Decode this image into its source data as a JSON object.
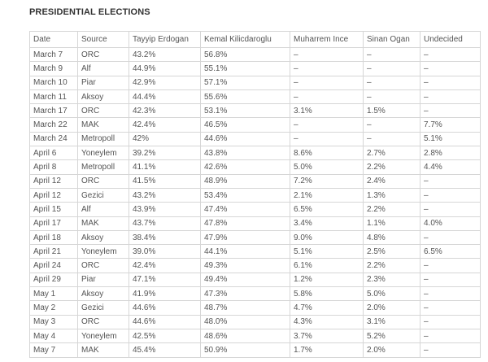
{
  "header": {
    "title": "PRESIDENTIAL ELECTIONS"
  },
  "table": {
    "columns": [
      "Date",
      "Source",
      "Tayyip Erdogan",
      "Kemal Kilicdaroglu",
      "Muharrem Ince",
      "Sinan Ogan",
      "Undecided"
    ],
    "rows": [
      [
        "March 7",
        "ORC",
        "43.2%",
        "56.8%",
        "–",
        "–",
        "–"
      ],
      [
        "March 9",
        "Alf",
        "44.9%",
        "55.1%",
        "–",
        "–",
        "–"
      ],
      [
        "March 10",
        "Piar",
        "42.9%",
        "57.1%",
        "–",
        "–",
        "–"
      ],
      [
        "March 11",
        "Aksoy",
        "44.4%",
        "55.6%",
        "–",
        "–",
        "–"
      ],
      [
        "March 17",
        "ORC",
        "42.3%",
        "53.1%",
        "3.1%",
        "1.5%",
        "–"
      ],
      [
        "March 22",
        "MAK",
        "42.4%",
        "46.5%",
        "–",
        "–",
        "7.7%"
      ],
      [
        "March 24",
        "Metropoll",
        "42%",
        "44.6%",
        "–",
        "–",
        "5.1%"
      ],
      [
        "April 6",
        "Yoneylem",
        "39.2%",
        "43.8%",
        "8.6%",
        "2.7%",
        "2.8%"
      ],
      [
        "April 8",
        "Metropoll",
        "41.1%",
        "42.6%",
        "5.0%",
        "2.2%",
        "4.4%"
      ],
      [
        "April 12",
        "ORC",
        "41.5%",
        "48.9%",
        "7.2%",
        "2.4%",
        "–"
      ],
      [
        "April 12",
        "Gezici",
        "43.2%",
        "53.4%",
        "2.1%",
        "1.3%",
        "–"
      ],
      [
        "April 15",
        "Alf",
        "43.9%",
        "47.4%",
        "6.5%",
        "2.2%",
        "–"
      ],
      [
        "April 17",
        "MAK",
        "43.7%",
        "47.8%",
        "3.4%",
        "1.1%",
        "4.0%"
      ],
      [
        "April 18",
        "Aksoy",
        "38.4%",
        "47.9%",
        "9.0%",
        "4.8%",
        "–"
      ],
      [
        "April 21",
        "Yoneylem",
        "39.0%",
        "44.1%",
        "5.1%",
        "2.5%",
        "6.5%"
      ],
      [
        "April 24",
        "ORC",
        "42.4%",
        "49.3%",
        "6.1%",
        "2.2%",
        "–"
      ],
      [
        "April 29",
        "Piar",
        "47.1%",
        "49.4%",
        "1.2%",
        "2.3%",
        "–"
      ],
      [
        "May 1",
        "Aksoy",
        "41.9%",
        "47.3%",
        "5.8%",
        "5.0%",
        "–"
      ],
      [
        "May 2",
        "Gezici",
        "44.6%",
        "48.7%",
        "4.7%",
        "2.0%",
        "–"
      ],
      [
        "May 3",
        "ORC",
        "44.6%",
        "48.0%",
        "4.3%",
        "3.1%",
        "–"
      ],
      [
        "May 4",
        "Yoneylem",
        "42.5%",
        "48.6%",
        "3.7%",
        "5.2%",
        "–"
      ],
      [
        "May 7",
        "MAK",
        "45.4%",
        "50.9%",
        "1.7%",
        "2.0%",
        "–"
      ]
    ]
  }
}
